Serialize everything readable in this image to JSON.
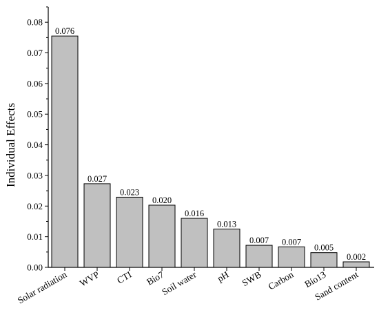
{
  "chart_data": {
    "type": "bar",
    "title": "",
    "xlabel": "",
    "ylabel": "Individual Effects",
    "ylim": [
      0,
      0.085
    ],
    "yticks": [
      "0.00",
      "0.01",
      "0.02",
      "0.03",
      "0.04",
      "0.05",
      "0.06",
      "0.07",
      "0.08"
    ],
    "grid": false,
    "legend": "none",
    "bar_color": "#c0c0c0",
    "bar_edge_color": "#000000",
    "categories": [
      "Solar radiation",
      "WVP",
      "CTI",
      "Bio7",
      "Soil water",
      "pH",
      "SWB",
      "Carbon",
      "Bio13",
      "Sand content"
    ],
    "values": [
      0.0755,
      0.0273,
      0.0229,
      0.0203,
      0.016,
      0.0125,
      0.0072,
      0.0067,
      0.0048,
      0.0018
    ],
    "data_labels": [
      "0.076",
      "0.027",
      "0.023",
      "0.020",
      "0.016",
      "0.013",
      "0.007",
      "0.007",
      "0.005",
      "0.002"
    ]
  }
}
